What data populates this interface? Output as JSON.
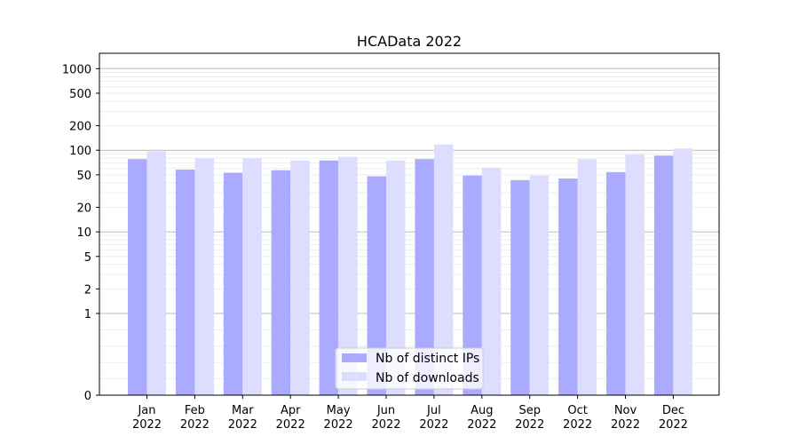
{
  "chart_data": {
    "type": "bar",
    "title": "HCAData 2022",
    "xlabel": "",
    "ylabel": "",
    "yscale": "symlog",
    "ylim": [
      0,
      1200
    ],
    "yticks": [
      0,
      1,
      2,
      5,
      10,
      20,
      50,
      100,
      200,
      500,
      1000
    ],
    "grid": true,
    "legend_position": "bottom-center",
    "categories": [
      [
        "Jan",
        "2022"
      ],
      [
        "Feb",
        "2022"
      ],
      [
        "Mar",
        "2022"
      ],
      [
        "Apr",
        "2022"
      ],
      [
        "May",
        "2022"
      ],
      [
        "Jun",
        "2022"
      ],
      [
        "Jul",
        "2022"
      ],
      [
        "Aug",
        "2022"
      ],
      [
        "Sep",
        "2022"
      ],
      [
        "Oct",
        "2022"
      ],
      [
        "Nov",
        "2022"
      ],
      [
        "Dec",
        "2022"
      ]
    ],
    "series": [
      {
        "name": "Nb of distinct IPs",
        "color": "#aaaaff",
        "values": [
          78,
          58,
          53,
          57,
          75,
          48,
          78,
          49,
          43,
          45,
          54,
          86
        ]
      },
      {
        "name": "Nb of downloads",
        "color": "#ddddff",
        "values": [
          97,
          80,
          80,
          75,
          83,
          75,
          118,
          61,
          49,
          78,
          89,
          105
        ]
      }
    ]
  }
}
